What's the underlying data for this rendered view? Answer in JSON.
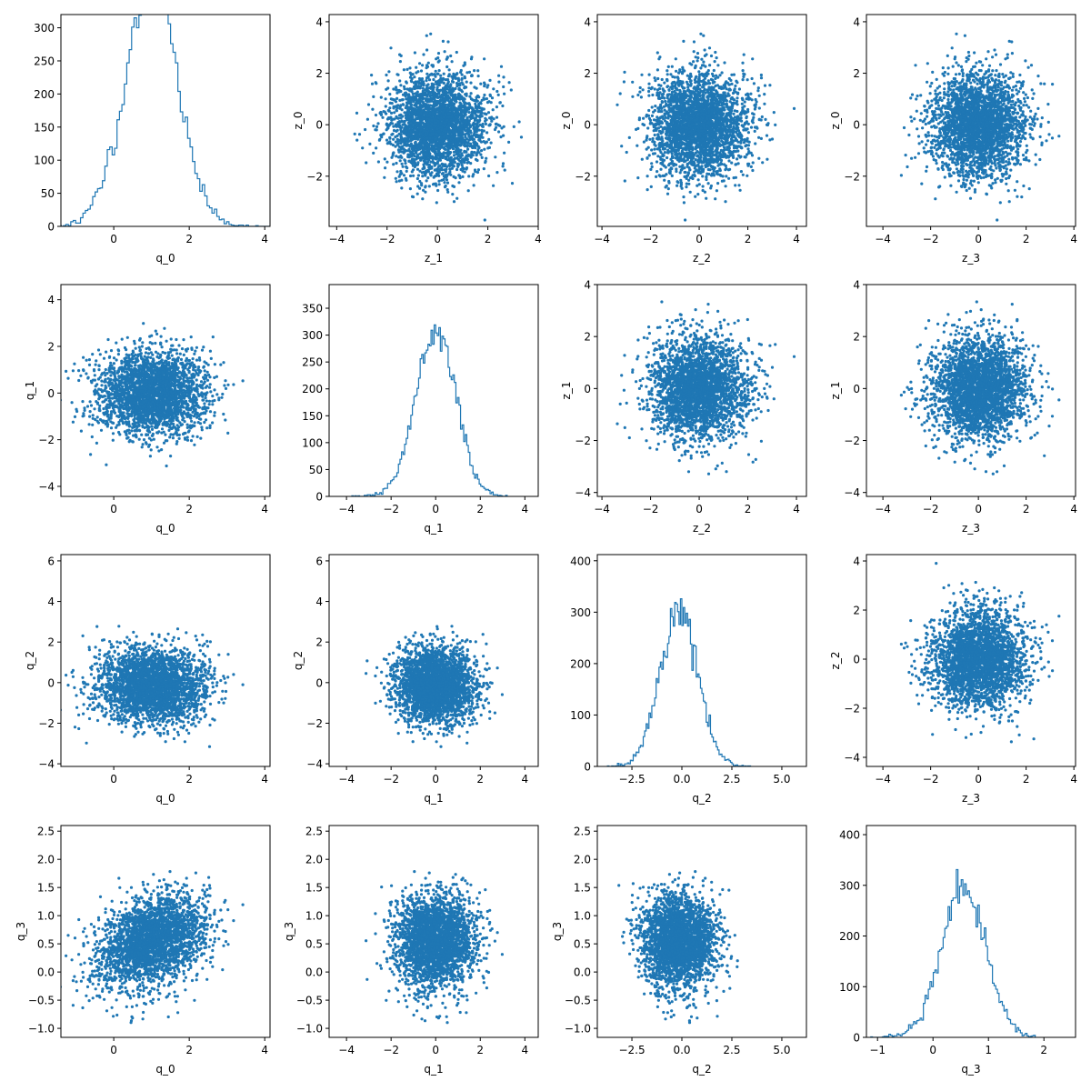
{
  "chart_data": {
    "type": "scatter",
    "title": "",
    "layout": "4x4 pair plot (histograms on diagonal, scatter off-diagonal)",
    "color": "#1f77b4",
    "n_samples": 10000,
    "hist_bins": 100,
    "grid": false,
    "variables": {
      "q_0": {
        "mean": 1.0,
        "std": 0.7
      },
      "q_1": {
        "mean": 0.0,
        "std": 0.9
      },
      "q_2": {
        "mean": -0.15,
        "std": 0.95
      },
      "q_3": {
        "mean": 0.55,
        "std": 0.4,
        "corr_with_q_0": 0.35
      },
      "z_0": {
        "mean": 0.0,
        "std": 1.0
      },
      "z_1": {
        "mean": 0.0,
        "std": 1.0
      },
      "z_2": {
        "mean": 0.0,
        "std": 1.0
      },
      "z_3": {
        "mean": 0.0,
        "std": 1.0
      }
    },
    "panels": [
      {
        "type": "hist",
        "x": "q_0",
        "xlabel": "q_0",
        "ylabel": "",
        "xlim": [
          -1.4,
          4.14
        ],
        "ylim": [
          0,
          320
        ],
        "xticks": [
          0,
          2,
          4
        ],
        "xticklabels": [
          "0",
          "2",
          "4"
        ],
        "yticks": [
          0,
          50,
          100,
          150,
          200,
          250,
          300
        ],
        "yticklabels": [
          "0",
          "50",
          "100",
          "150",
          "200",
          "250",
          "300"
        ]
      },
      {
        "type": "scatter",
        "x": "z_1",
        "y": "z_0",
        "xlabel": "z_1",
        "ylabel": "z_0",
        "xlim": [
          -4.3,
          4.0
        ],
        "ylim": [
          -3.95,
          4.28
        ],
        "xticks": [
          -4,
          -2,
          0,
          2,
          4
        ],
        "xticklabels": [
          "−4",
          "−2",
          "0",
          "2",
          "4"
        ],
        "yticks": [
          -2,
          0,
          2,
          4
        ],
        "yticklabels": [
          "−2",
          "0",
          "2",
          "4"
        ]
      },
      {
        "type": "scatter",
        "x": "z_2",
        "y": "z_0",
        "xlabel": "z_2",
        "ylabel": "z_0",
        "xlim": [
          -4.19,
          4.41
        ],
        "ylim": [
          -3.95,
          4.28
        ],
        "xticks": [
          -4,
          -2,
          0,
          2,
          4
        ],
        "xticklabels": [
          "−4",
          "−2",
          "0",
          "2",
          "4"
        ],
        "yticks": [
          -2,
          0,
          2,
          4
        ],
        "yticklabels": [
          "−2",
          "0",
          "2",
          "4"
        ]
      },
      {
        "type": "scatter",
        "x": "z_3",
        "y": "z_0",
        "xlabel": "z_3",
        "ylabel": "z_0",
        "xlim": [
          -4.69,
          4.07
        ],
        "ylim": [
          -3.95,
          4.28
        ],
        "xticks": [
          -4,
          -2,
          0,
          2,
          4
        ],
        "xticklabels": [
          "−4",
          "−2",
          "0",
          "2",
          "4"
        ],
        "yticks": [
          -2,
          0,
          2,
          4
        ],
        "yticklabels": [
          "−2",
          "0",
          "2",
          "4"
        ]
      },
      {
        "type": "scatter",
        "x": "q_0",
        "y": "q_1",
        "xlabel": "q_0",
        "ylabel": "q_1",
        "xlim": [
          -1.4,
          4.14
        ],
        "ylim": [
          -4.43,
          4.65
        ],
        "xticks": [
          0,
          2,
          4
        ],
        "xticklabels": [
          "0",
          "2",
          "4"
        ],
        "yticks": [
          -4,
          -2,
          0,
          2,
          4
        ],
        "yticklabels": [
          "−4",
          "−2",
          "0",
          "2",
          "4"
        ]
      },
      {
        "type": "hist",
        "x": "q_1",
        "xlabel": "q_1",
        "ylabel": "",
        "xlim": [
          -4.78,
          4.6
        ],
        "ylim": [
          0,
          394
        ],
        "xticks": [
          -4,
          -2,
          0,
          2,
          4
        ],
        "xticklabels": [
          "−4",
          "−2",
          "0",
          "2",
          "4"
        ],
        "yticks": [
          0,
          50,
          100,
          150,
          200,
          250,
          300,
          350
        ],
        "yticklabels": [
          "0",
          "50",
          "100",
          "150",
          "200",
          "250",
          "300",
          "350"
        ]
      },
      {
        "type": "scatter",
        "x": "z_2",
        "y": "z_1",
        "xlabel": "z_2",
        "ylabel": "z_1",
        "xlim": [
          -4.19,
          4.41
        ],
        "ylim": [
          -4.15,
          4.0
        ],
        "xticks": [
          -4,
          -2,
          0,
          2,
          4
        ],
        "xticklabels": [
          "−4",
          "−2",
          "0",
          "2",
          "4"
        ],
        "yticks": [
          -4,
          -2,
          0,
          2,
          4
        ],
        "yticklabels": [
          "−4",
          "−2",
          "0",
          "2",
          "4"
        ]
      },
      {
        "type": "scatter",
        "x": "z_3",
        "y": "z_1",
        "xlabel": "z_3",
        "ylabel": "z_1",
        "xlim": [
          -4.69,
          4.07
        ],
        "ylim": [
          -4.15,
          4.0
        ],
        "xticks": [
          -4,
          -2,
          0,
          2,
          4
        ],
        "xticklabels": [
          "−4",
          "−2",
          "0",
          "2",
          "4"
        ],
        "yticks": [
          -4,
          -2,
          0,
          2,
          4
        ],
        "yticklabels": [
          "−4",
          "−2",
          "0",
          "2",
          "4"
        ]
      },
      {
        "type": "scatter",
        "x": "q_0",
        "y": "q_2",
        "xlabel": "q_0",
        "ylabel": "q_2",
        "xlim": [
          -1.4,
          4.14
        ],
        "ylim": [
          -4.13,
          6.31
        ],
        "xticks": [
          0,
          2,
          4
        ],
        "xticklabels": [
          "0",
          "2",
          "4"
        ],
        "yticks": [
          -4,
          -2,
          0,
          2,
          4,
          6
        ],
        "yticklabels": [
          "−4",
          "−2",
          "0",
          "2",
          "4",
          "6"
        ]
      },
      {
        "type": "scatter",
        "x": "q_1",
        "y": "q_2",
        "xlabel": "q_1",
        "ylabel": "q_2",
        "xlim": [
          -4.78,
          4.6
        ],
        "ylim": [
          -4.13,
          6.31
        ],
        "xticks": [
          -4,
          -2,
          0,
          2,
          4
        ],
        "xticklabels": [
          "−4",
          "−2",
          "0",
          "2",
          "4"
        ],
        "yticks": [
          -4,
          -2,
          0,
          2,
          4,
          6
        ],
        "yticklabels": [
          "−4",
          "−2",
          "0",
          "2",
          "4",
          "6"
        ]
      },
      {
        "type": "hist",
        "x": "q_2",
        "xlabel": "q_2",
        "ylabel": "",
        "xlim": [
          -4.23,
          6.23
        ],
        "ylim": [
          0,
          412
        ],
        "xticks": [
          -2.5,
          0,
          2.5,
          5
        ],
        "xticklabels": [
          "−2.5",
          "0.0",
          "2.5",
          "5.0"
        ],
        "yticks": [
          0,
          100,
          200,
          300,
          400
        ],
        "yticklabels": [
          "0",
          "100",
          "200",
          "300",
          "400"
        ]
      },
      {
        "type": "scatter",
        "x": "z_3",
        "y": "z_2",
        "xlabel": "z_3",
        "ylabel": "z_2",
        "xlim": [
          -4.69,
          4.07
        ],
        "ylim": [
          -4.37,
          4.26
        ],
        "xticks": [
          -4,
          -2,
          0,
          2,
          4
        ],
        "xticklabels": [
          "−4",
          "−2",
          "0",
          "2",
          "4"
        ],
        "yticks": [
          -4,
          -2,
          0,
          2,
          4
        ],
        "yticklabels": [
          "−4",
          "−2",
          "0",
          "2",
          "4"
        ]
      },
      {
        "type": "scatter",
        "x": "q_0",
        "y": "q_3",
        "xlabel": "q_0",
        "ylabel": "q_3",
        "xlim": [
          -1.4,
          4.14
        ],
        "ylim": [
          -1.16,
          2.6
        ],
        "xticks": [
          0,
          2,
          4
        ],
        "xticklabels": [
          "0",
          "2",
          "4"
        ],
        "yticks": [
          -1,
          -0.5,
          0,
          0.5,
          1,
          1.5,
          2,
          2.5
        ],
        "yticklabels": [
          "−1.0",
          "−0.5",
          "0.0",
          "0.5",
          "1.0",
          "1.5",
          "2.0",
          "2.5"
        ]
      },
      {
        "type": "scatter",
        "x": "q_1",
        "y": "q_3",
        "xlabel": "q_1",
        "ylabel": "q_3",
        "xlim": [
          -4.78,
          4.6
        ],
        "ylim": [
          -1.16,
          2.6
        ],
        "xticks": [
          -4,
          -2,
          0,
          2,
          4
        ],
        "xticklabels": [
          "−4",
          "−2",
          "0",
          "2",
          "4"
        ],
        "yticks": [
          -1,
          -0.5,
          0,
          0.5,
          1,
          1.5,
          2,
          2.5
        ],
        "yticklabels": [
          "−1.0",
          "−0.5",
          "0.0",
          "0.5",
          "1.0",
          "1.5",
          "2.0",
          "2.5"
        ]
      },
      {
        "type": "scatter",
        "x": "q_2",
        "y": "q_3",
        "xlabel": "q_2",
        "ylabel": "q_3",
        "xlim": [
          -4.23,
          6.23
        ],
        "ylim": [
          -1.16,
          2.6
        ],
        "xticks": [
          -2.5,
          0,
          2.5,
          5
        ],
        "xticklabels": [
          "−2.5",
          "0.0",
          "2.5",
          "5.0"
        ],
        "yticks": [
          -1,
          -0.5,
          0,
          0.5,
          1,
          1.5,
          2,
          2.5
        ],
        "yticklabels": [
          "−1.0",
          "−0.5",
          "0.0",
          "0.5",
          "1.0",
          "1.5",
          "2.0",
          "2.5"
        ]
      },
      {
        "type": "hist",
        "x": "q_3",
        "xlabel": "q_3",
        "ylabel": "",
        "xlim": [
          -1.2,
          2.57
        ],
        "ylim": [
          0,
          418
        ],
        "xticks": [
          -1,
          0,
          1,
          2
        ],
        "xticklabels": [
          "−1",
          "0",
          "1",
          "2"
        ],
        "yticks": [
          0,
          100,
          200,
          300,
          400
        ],
        "yticklabels": [
          "0",
          "100",
          "200",
          "300",
          "400"
        ]
      }
    ]
  }
}
